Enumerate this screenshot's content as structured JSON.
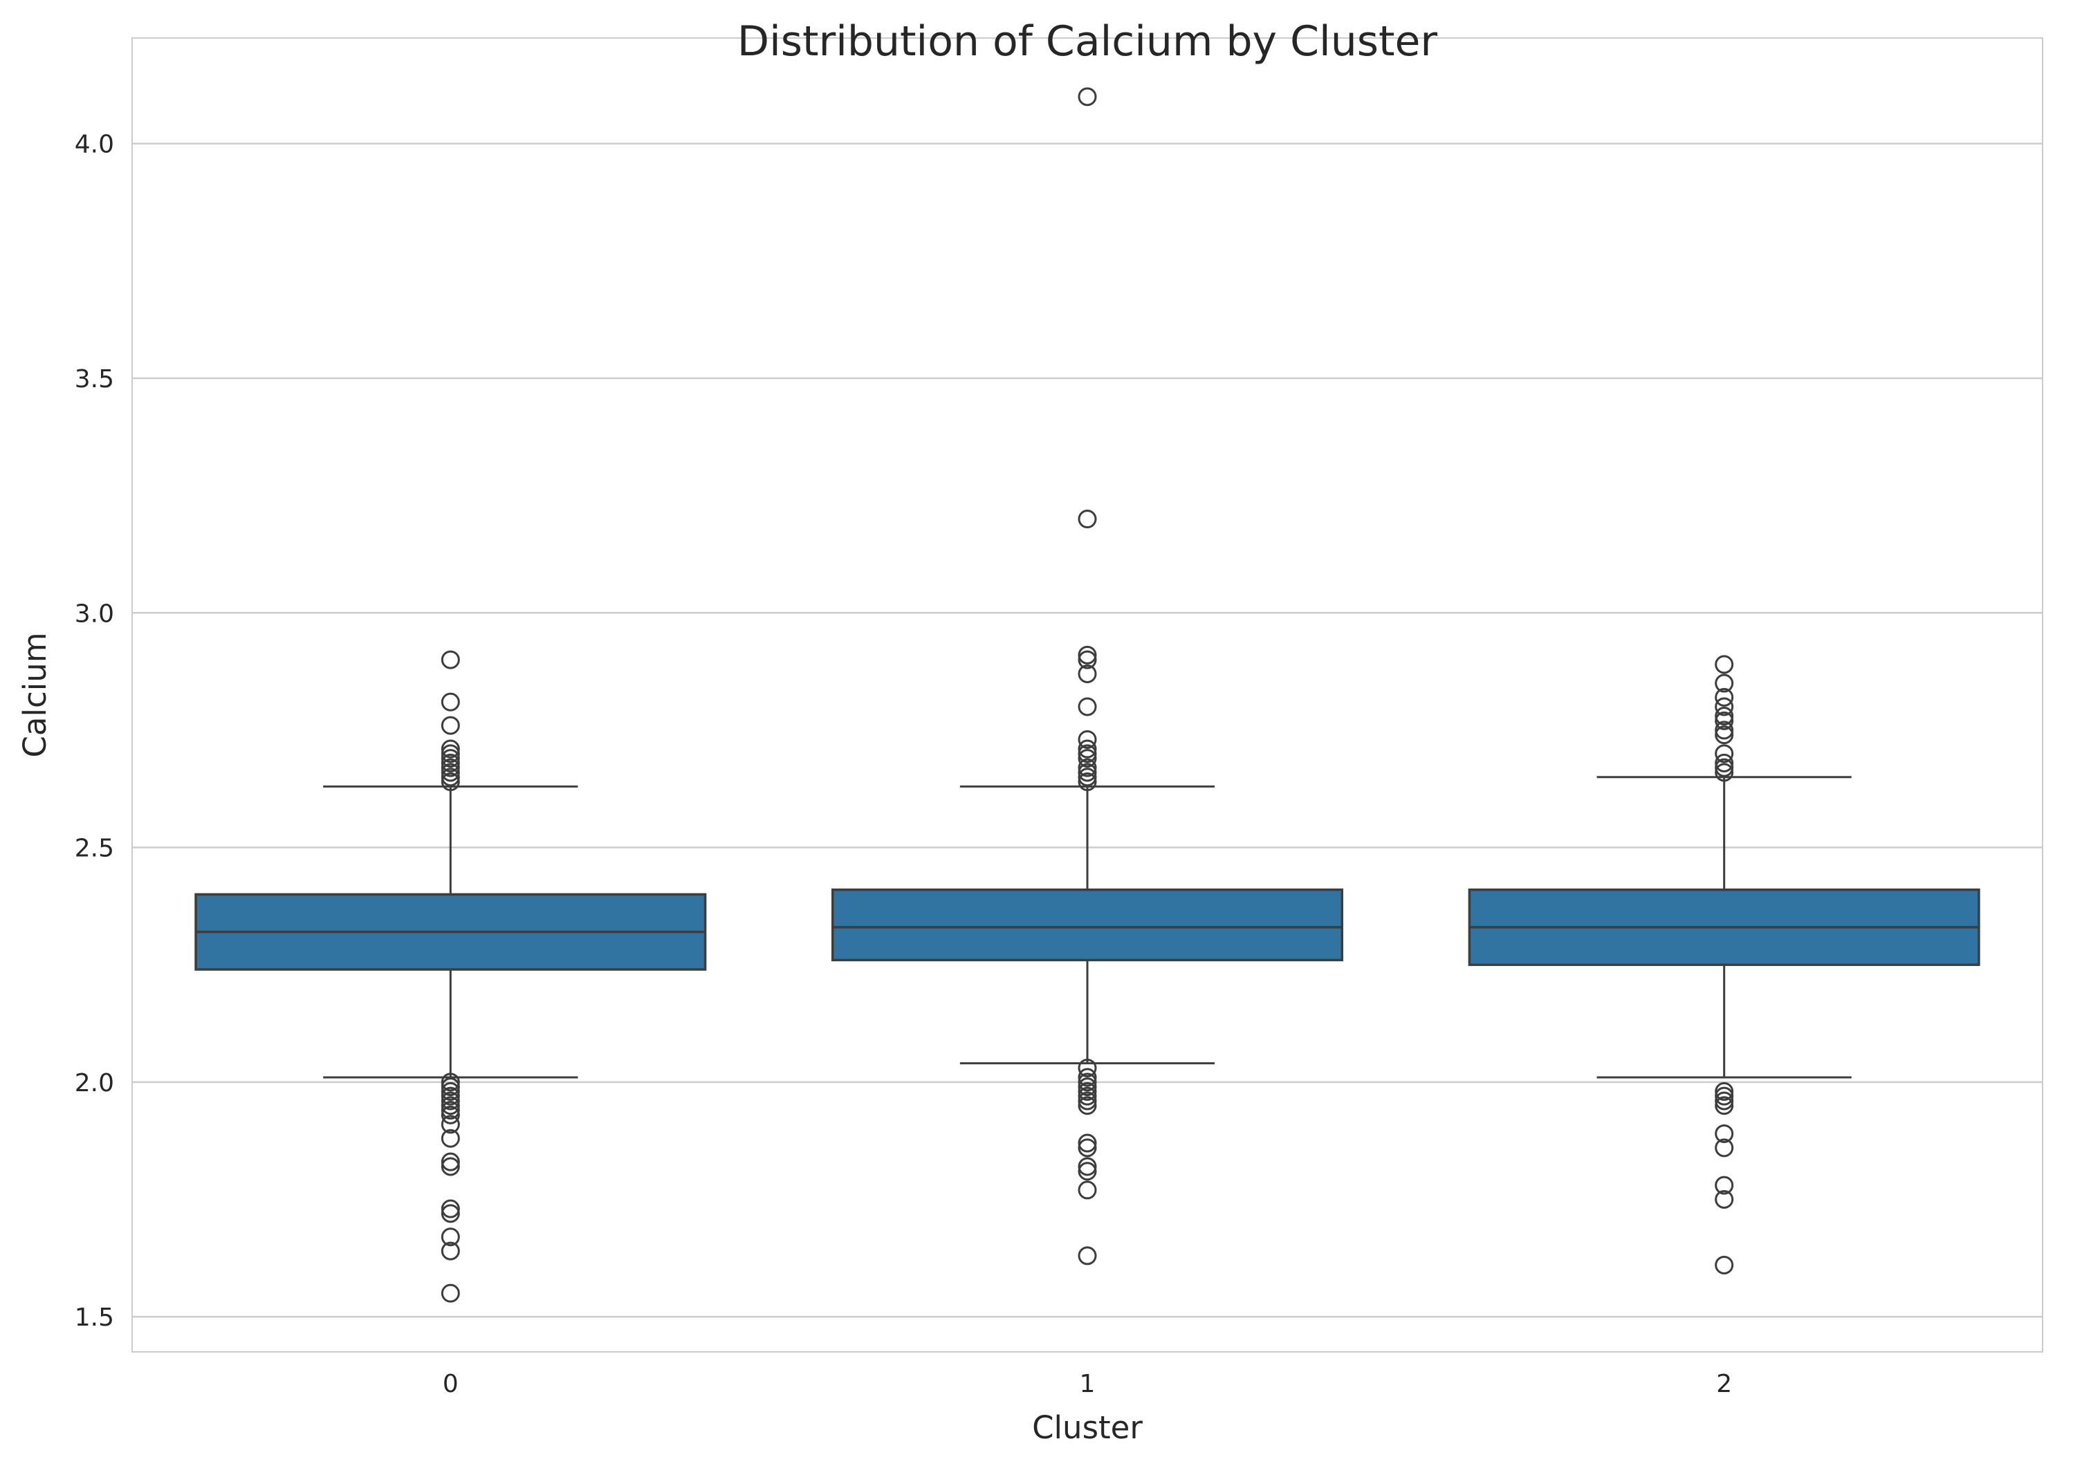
{
  "chart_data": {
    "type": "box",
    "title": "Distribution of Calcium by Cluster",
    "xlabel": "Cluster",
    "ylabel": "Calcium",
    "categories": [
      "0",
      "1",
      "2"
    ],
    "ylim": [
      1.425,
      4.225
    ],
    "yticks": [
      "1.5",
      "2.0",
      "2.5",
      "3.0",
      "3.5",
      "4.0"
    ],
    "grid": true,
    "box_color": "#3274a1",
    "line_color": "#3d3d3d",
    "grid_color": "#cccccc",
    "boxes": [
      {
        "category": "0",
        "whisker_low": 2.01,
        "q1": 2.24,
        "median": 2.32,
        "q3": 2.4,
        "whisker_high": 2.63,
        "outliers": [
          2.9,
          2.81,
          2.76,
          2.71,
          2.7,
          2.69,
          2.68,
          2.67,
          2.66,
          2.65,
          2.64,
          2.0,
          1.99,
          1.98,
          1.97,
          1.96,
          1.95,
          1.94,
          1.93,
          1.91,
          1.88,
          1.83,
          1.82,
          1.73,
          1.72,
          1.67,
          1.64,
          1.55
        ]
      },
      {
        "category": "1",
        "whisker_low": 2.04,
        "q1": 2.26,
        "median": 2.33,
        "q3": 2.41,
        "whisker_high": 2.63,
        "outliers": [
          4.1,
          3.2,
          2.91,
          2.9,
          2.87,
          2.8,
          2.73,
          2.71,
          2.7,
          2.69,
          2.67,
          2.66,
          2.65,
          2.64,
          2.03,
          2.01,
          2.0,
          1.99,
          1.98,
          1.97,
          1.96,
          1.95,
          1.87,
          1.86,
          1.82,
          1.81,
          1.77,
          1.63
        ]
      },
      {
        "category": "2",
        "whisker_low": 2.01,
        "q1": 2.25,
        "median": 2.33,
        "q3": 2.41,
        "whisker_high": 2.65,
        "outliers": [
          2.89,
          2.85,
          2.82,
          2.8,
          2.78,
          2.77,
          2.75,
          2.74,
          2.7,
          2.68,
          2.67,
          2.66,
          1.98,
          1.97,
          1.96,
          1.95,
          1.89,
          1.86,
          1.78,
          1.75,
          1.61
        ]
      }
    ]
  }
}
